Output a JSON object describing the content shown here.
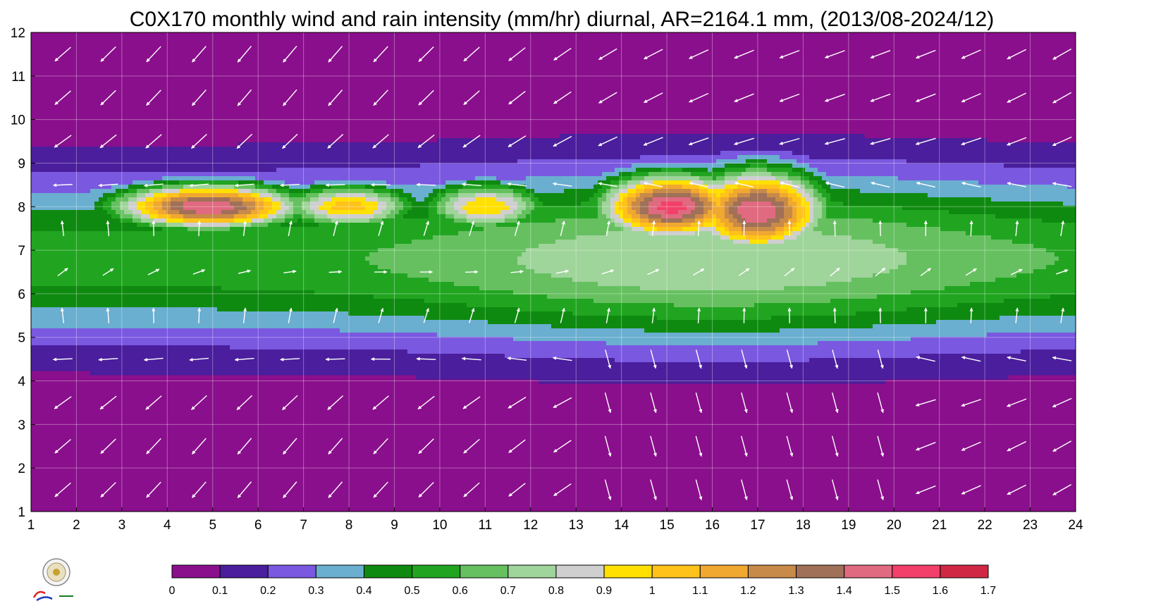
{
  "chart_data": {
    "type": "heatmap",
    "title": "C0X170 monthly wind and rain intensity (mm/hr) diurnal, AR=2164.1 mm, (2013/08-2024/12)",
    "x_ticks": [
      "1",
      "2",
      "3",
      "4",
      "5",
      "6",
      "7",
      "8",
      "9",
      "10",
      "11",
      "12",
      "13",
      "14",
      "15",
      "16",
      "17",
      "18",
      "19",
      "20",
      "21",
      "22",
      "23",
      "24"
    ],
    "y_ticks": [
      "1",
      "2",
      "3",
      "4",
      "5",
      "6",
      "7",
      "8",
      "9",
      "10",
      "11",
      "12"
    ],
    "xlim": [
      1,
      24
    ],
    "ylim": [
      1,
      12
    ],
    "grid": true,
    "colorbar": {
      "levels": [
        "0",
        "0.1",
        "0.2",
        "0.3",
        "0.4",
        "0.5",
        "0.6",
        "0.7",
        "0.8",
        "0.9",
        "1",
        "1.1",
        "1.2",
        "1.3",
        "1.4",
        "1.5",
        "1.6",
        "1.7"
      ],
      "colors": [
        "#8a0f8c",
        "#4a1e9c",
        "#7a58e0",
        "#6aaed0",
        "#0f8a10",
        "#21a521",
        "#66c060",
        "#9fd49a",
        "#cfcfcf",
        "#ffe000",
        "#ffc21a",
        "#f0a830",
        "#c88a48",
        "#a07058",
        "#e06a80",
        "#f2406a",
        "#d02844"
      ]
    },
    "rain_intensity_ridges": [
      {
        "month": 4.9,
        "hour": 8.0,
        "peak": 1.5,
        "sx": 2.2,
        "sy": 0.55
      },
      {
        "month": 5.4,
        "hour": 5.8,
        "peak": 0.25,
        "sx": 1.6,
        "sy": 1.2
      },
      {
        "month": 8.0,
        "hour": 8.0,
        "peak": 1.05,
        "sx": 1.6,
        "sy": 0.55
      },
      {
        "month": 11.0,
        "hour": 8.0,
        "peak": 1.0,
        "sx": 1.5,
        "sy": 0.6
      },
      {
        "month": 15.1,
        "hour": 8.0,
        "peak": 1.55,
        "sx": 1.7,
        "sy": 0.8
      },
      {
        "month": 17.0,
        "hour": 7.9,
        "peak": 1.5,
        "sx": 1.6,
        "sy": 1.0
      },
      {
        "month": 20.8,
        "hour": 7.0,
        "peak": 0.55,
        "sx": 1.4,
        "sy": 0.9
      }
    ],
    "wind_direction_pattern": "mostly toward south-west at night and early morning, toward east-north-east in afternoon",
    "footer_logo": {
      "name": "Severe Storm Lab",
      "text": "Severe Storm Lab."
    }
  }
}
